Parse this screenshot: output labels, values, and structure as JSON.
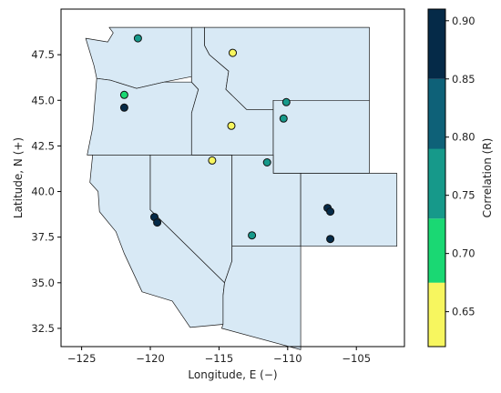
{
  "chart_data": {
    "type": "scatter",
    "xlabel": "Longitude, E (−)",
    "ylabel": "Latitude, N (+)",
    "xlim": [
      -126.5,
      -101.5
    ],
    "ylim": [
      31.5,
      50.0
    ],
    "x_ticks": [
      -125,
      -120,
      -115,
      -110,
      -105
    ],
    "x_tick_labels": [
      "−125",
      "−120",
      "−115",
      "−110",
      "−105"
    ],
    "y_ticks": [
      32.5,
      35.0,
      37.5,
      40.0,
      42.5,
      45.0,
      47.5
    ],
    "y_tick_labels": [
      "32.5",
      "35.0",
      "37.5",
      "40.0",
      "42.5",
      "45.0",
      "47.5"
    ],
    "colorbar": {
      "label": "Correlation (R)",
      "range": [
        0.62,
        0.91
      ],
      "bins": [
        {
          "from": 0.62,
          "to": 0.675,
          "color": "#f7f65f"
        },
        {
          "from": 0.675,
          "to": 0.73,
          "color": "#1ad873"
        },
        {
          "from": 0.73,
          "to": 0.79,
          "color": "#16998a"
        },
        {
          "from": 0.79,
          "to": 0.85,
          "color": "#0e6178"
        },
        {
          "from": 0.85,
          "to": 0.91,
          "color": "#052a48"
        }
      ],
      "ticks": [
        0.65,
        0.7,
        0.75,
        0.8,
        0.85,
        0.9
      ],
      "tick_labels": [
        "0.65",
        "0.70",
        "0.75",
        "0.80",
        "0.85",
        "0.90"
      ]
    },
    "points": [
      {
        "lon": -120.9,
        "lat": 48.4,
        "r": 0.76
      },
      {
        "lon": -121.9,
        "lat": 45.3,
        "r": 0.7
      },
      {
        "lon": -121.9,
        "lat": 44.6,
        "r": 0.87
      },
      {
        "lon": -114.0,
        "lat": 47.6,
        "r": 0.64
      },
      {
        "lon": -114.1,
        "lat": 43.6,
        "r": 0.64
      },
      {
        "lon": -115.5,
        "lat": 41.7,
        "r": 0.64
      },
      {
        "lon": -111.5,
        "lat": 41.6,
        "r": 0.76
      },
      {
        "lon": -110.1,
        "lat": 44.9,
        "r": 0.76
      },
      {
        "lon": -110.3,
        "lat": 44.0,
        "r": 0.76
      },
      {
        "lon": -112.6,
        "lat": 37.6,
        "r": 0.76
      },
      {
        "lon": -119.7,
        "lat": 38.6,
        "r": 0.89
      },
      {
        "lon": -119.5,
        "lat": 38.3,
        "r": 0.89
      },
      {
        "lon": -107.1,
        "lat": 39.1,
        "r": 0.89
      },
      {
        "lon": -106.9,
        "lat": 38.9,
        "r": 0.89
      },
      {
        "lon": -106.9,
        "lat": 37.4,
        "r": 0.89
      }
    ]
  }
}
